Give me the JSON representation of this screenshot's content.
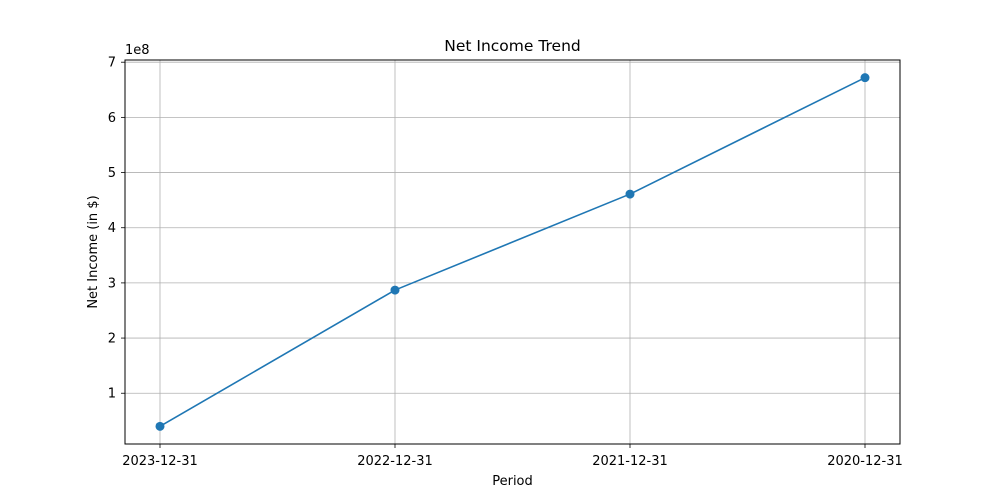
{
  "chart_data": {
    "type": "line",
    "title": "Net Income Trend",
    "xlabel": "Period",
    "ylabel": "Net Income (in $)",
    "y_offset_label": "1e8",
    "categories": [
      "2023-12-31",
      "2022-12-31",
      "2021-12-31",
      "2020-12-31"
    ],
    "series": [
      {
        "values": [
          40000000,
          287000000,
          461000000,
          672000000
        ],
        "color": "#1f77b4",
        "marker": "circle"
      }
    ],
    "yticks": [
      1,
      2,
      3,
      4,
      5,
      6,
      7
    ],
    "y_tick_multiplier": 100000000,
    "ylim": [
      8000000,
      704000000
    ],
    "grid": true,
    "legend": "none"
  }
}
